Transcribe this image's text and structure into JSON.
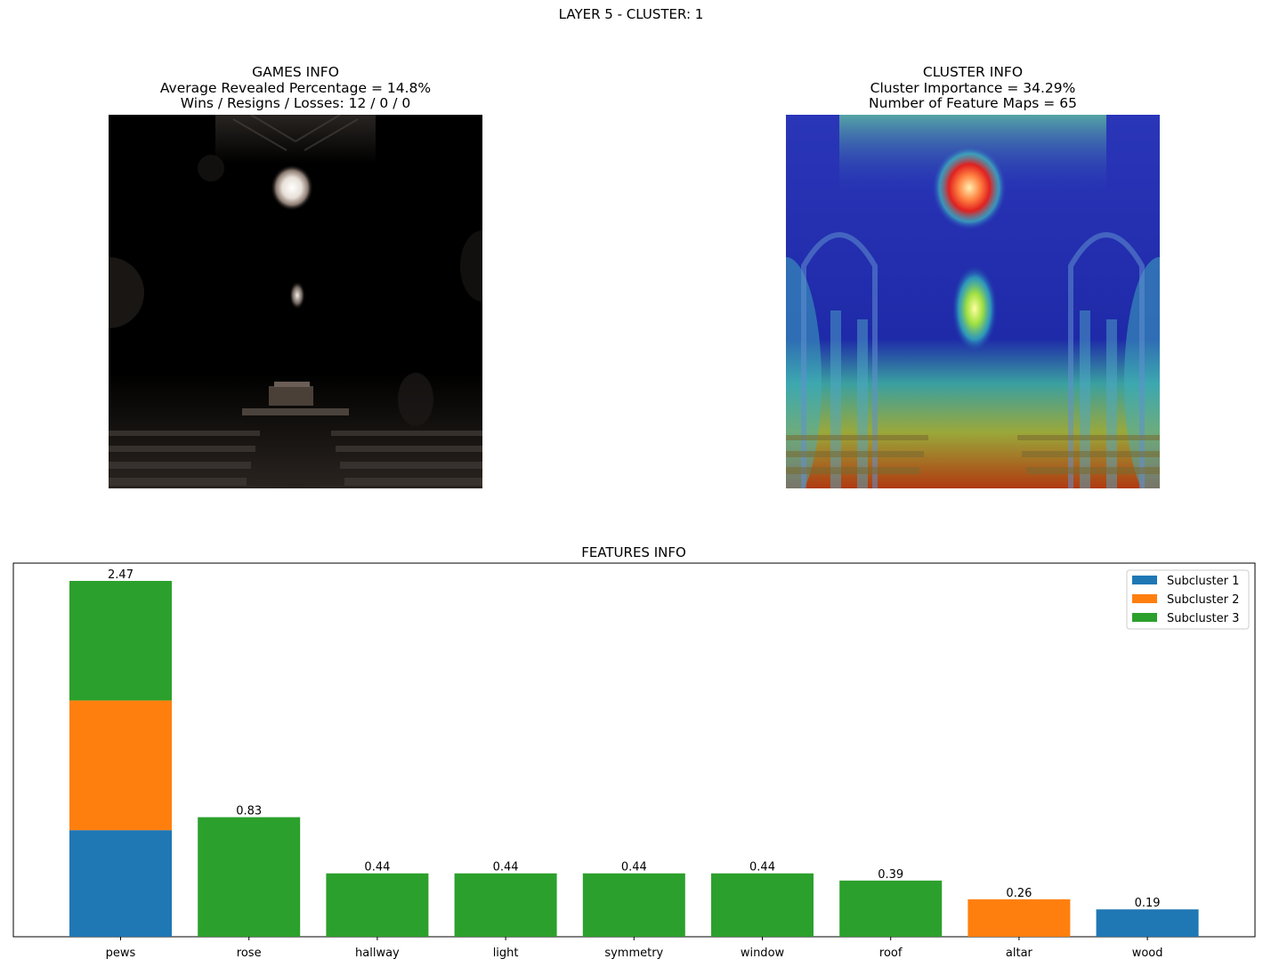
{
  "suptitle": "LAYER 5 - CLUSTER: 1",
  "games_info": {
    "title": "GAMES INFO",
    "line1": "Average Revealed Percentage = 14.8%",
    "line2": "Wins / Resigns / Losses: 12 / 0 / 0",
    "image_description": "masked church interior (mostly black, rose window and pews revealed)"
  },
  "cluster_info": {
    "title": "CLUSTER INFO",
    "line1": "Cluster Importance = 34.29%",
    "line2": "Number of Feature Maps = 65",
    "image_description": "church interior with jet colormap heatmap overlay"
  },
  "features_info": {
    "title": "FEATURES INFO"
  },
  "colors": {
    "subcluster_1": "#1f77b4",
    "subcluster_2": "#ff7f0e",
    "subcluster_3": "#2ca02c"
  },
  "chart_data": {
    "type": "bar",
    "stacked": true,
    "title": "FEATURES INFO",
    "categories": [
      "pews",
      "rose",
      "hallway",
      "light",
      "symmetry",
      "window",
      "roof",
      "altar",
      "wood"
    ],
    "series": [
      {
        "name": "Subcluster 1",
        "color": "#1f77b4",
        "values": [
          0.74,
          0,
          0,
          0,
          0,
          0,
          0,
          0,
          0.19
        ]
      },
      {
        "name": "Subcluster 2",
        "color": "#ff7f0e",
        "values": [
          0.9,
          0,
          0,
          0,
          0,
          0,
          0,
          0.26,
          0
        ]
      },
      {
        "name": "Subcluster 3",
        "color": "#2ca02c",
        "values": [
          0.83,
          0.83,
          0.44,
          0.44,
          0.44,
          0.44,
          0.39,
          0,
          0
        ]
      }
    ],
    "totals": [
      2.47,
      0.83,
      0.44,
      0.44,
      0.44,
      0.44,
      0.39,
      0.26,
      0.19
    ],
    "total_labels": [
      "2.47",
      "0.83",
      "0.44",
      "0.44",
      "0.44",
      "0.44",
      "0.39",
      "0.26",
      "0.19"
    ],
    "ylim": [
      0,
      2.5935
    ],
    "yticks_visible": false,
    "legend_position": "upper right",
    "grid": false
  }
}
